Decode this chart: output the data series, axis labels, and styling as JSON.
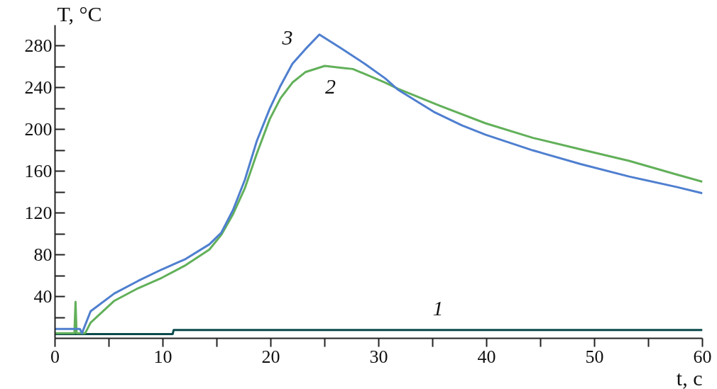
{
  "chart_data": {
    "type": "line",
    "xlabel": "t, c",
    "ylabel": "T, °C",
    "xlim": [
      0,
      60
    ],
    "ylim": [
      0,
      300
    ],
    "xticks": [
      0,
      {
        "value": 5,
        "label": null
      },
      10,
      {
        "value": 15,
        "label": null
      },
      20,
      {
        "value": 25,
        "label": null
      },
      30,
      {
        "value": 35,
        "label": null
      },
      40,
      {
        "value": 45,
        "label": null
      },
      50,
      {
        "value": 55,
        "label": null
      },
      60
    ],
    "yticks": [
      {
        "value": 20,
        "label": null
      },
      40,
      {
        "value": 60,
        "label": null
      },
      80,
      {
        "value": 100,
        "label": null
      },
      120,
      {
        "value": 140,
        "label": null
      },
      160,
      {
        "value": 180,
        "label": null
      },
      200,
      {
        "value": 220,
        "label": null
      },
      240,
      {
        "value": 260,
        "label": null
      },
      280
    ],
    "grid": false,
    "marker": "none",
    "line_style": "solid",
    "series": [
      {
        "name": "1",
        "color": "#0b4a4c",
        "x": [
          0,
          5,
          10.9,
          11,
          20,
          35.5,
          50,
          60
        ],
        "values": [
          4,
          4,
          4,
          8,
          8,
          8,
          8,
          8
        ]
      },
      {
        "name": "2",
        "color": "#62b05a",
        "x": [
          0,
          1.8,
          1.9,
          2.0,
          2.8,
          3.3,
          5.5,
          7.7,
          9.9,
          12.1,
          14.3,
          15.4,
          16.5,
          17.6,
          18.7,
          19.9,
          20.9,
          22.0,
          23.2,
          25.0,
          26.7,
          27.6,
          30.6,
          31.8,
          35.6,
          39.9,
          44.3,
          48.7,
          53.2,
          57.6,
          60
        ],
        "values": [
          5,
          5,
          35,
          5,
          5,
          15,
          36,
          48,
          58,
          70,
          85,
          99,
          119,
          144,
          177,
          210,
          230,
          245,
          255,
          261,
          259,
          258,
          245,
          239,
          223,
          206,
          192,
          181,
          170,
          157,
          150
        ]
      },
      {
        "name": "3",
        "color": "#4f7fcf",
        "x": [
          0,
          2.3,
          2.5,
          3.3,
          5.5,
          7.7,
          9.9,
          12.1,
          14.3,
          15.4,
          16.5,
          17.6,
          18.7,
          19.9,
          20.9,
          22.0,
          23.2,
          24.5,
          26.5,
          28.7,
          30.6,
          31.8,
          35.1,
          37.7,
          39.9,
          44.3,
          48.7,
          53.2,
          57.6,
          60
        ],
        "values": [
          9,
          9,
          5,
          26,
          43,
          55,
          66,
          76,
          90,
          101,
          123,
          152,
          189,
          220,
          242,
          263,
          277,
          291,
          278,
          263,
          249,
          238,
          217,
          204,
          195,
          180,
          167,
          155,
          145,
          139
        ]
      }
    ]
  }
}
